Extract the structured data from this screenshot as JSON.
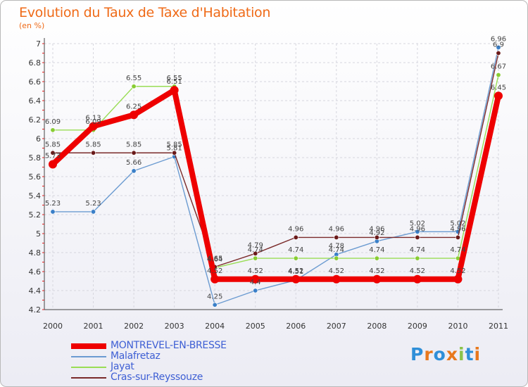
{
  "header": {
    "title": "Evolution du Taux de Taxe d'Habitation",
    "subtitle": "(en %)"
  },
  "logo": {
    "text": "Proxiti",
    "colors": [
      "#2f8fd8",
      "#e8781c",
      "#2f8fd8",
      "#e8781c",
      "#8bc34a",
      "#2f8fd8",
      "#e8781c"
    ]
  },
  "chart_data": {
    "type": "line",
    "x": [
      "2000",
      "2001",
      "2002",
      "2003",
      "2004",
      "2005",
      "2006",
      "2007",
      "2008",
      "2009",
      "2010",
      "2011"
    ],
    "ylim": [
      4.2,
      7.0
    ],
    "yticks": [
      "4.2",
      "4.4",
      "4.6",
      "4.8",
      "5",
      "5.2",
      "5.4",
      "5.6",
      "5.8",
      "6",
      "6.2",
      "6.4",
      "6.6",
      "6.8",
      "7"
    ],
    "grid": true,
    "legend_position": "bottom-left",
    "series": [
      {
        "name": "MONTREVEL-EN-BRESSE",
        "color": "#ee0000",
        "values": [
          5.73,
          6.13,
          6.25,
          6.51,
          4.52,
          4.52,
          4.52,
          4.52,
          4.52,
          4.52,
          4.52,
          6.45
        ],
        "labels": [
          "5.73",
          "6.13",
          "6.25",
          "6.51",
          "4.52",
          "4.52",
          "4.52",
          "4.52",
          "4.52",
          "4.52",
          "4.52",
          "6.45"
        ]
      },
      {
        "name": "Malafretaz",
        "color": "#6b9bd1",
        "values": [
          5.23,
          5.23,
          5.66,
          5.81,
          4.25,
          4.4,
          4.51,
          4.78,
          4.92,
          5.02,
          5.02,
          6.96
        ],
        "labels": [
          "5.23",
          "5.23",
          "5.66",
          "5.81",
          "4.25",
          "4.4",
          "4.51",
          "4.78",
          "4.92",
          "5.02",
          "5.02",
          "6.96"
        ]
      },
      {
        "name": "Jayat",
        "color": "#99dd55",
        "values": [
          6.09,
          6.09,
          6.55,
          6.55,
          4.64,
          4.74,
          4.74,
          4.74,
          4.74,
          4.74,
          4.74,
          6.67
        ],
        "labels": [
          "6.09",
          "6.09",
          "6.55",
          "6.55",
          "4.64",
          "4.74",
          "4.74",
          "4.74",
          "4.74",
          "4.74",
          "4.74",
          "6.67"
        ]
      },
      {
        "name": "Cras-sur-Reyssouze",
        "color": "#7a2a2a",
        "values": [
          5.85,
          5.85,
          5.85,
          5.85,
          4.65,
          4.79,
          4.96,
          4.96,
          4.96,
          4.96,
          4.96,
          6.9
        ],
        "labels": [
          "5.85",
          "5.85",
          "5.85",
          "5.85",
          "4.65",
          "4.79",
          "4.96",
          "4.96",
          "4.96",
          "4.96",
          "4.96",
          "6.9"
        ]
      }
    ]
  }
}
